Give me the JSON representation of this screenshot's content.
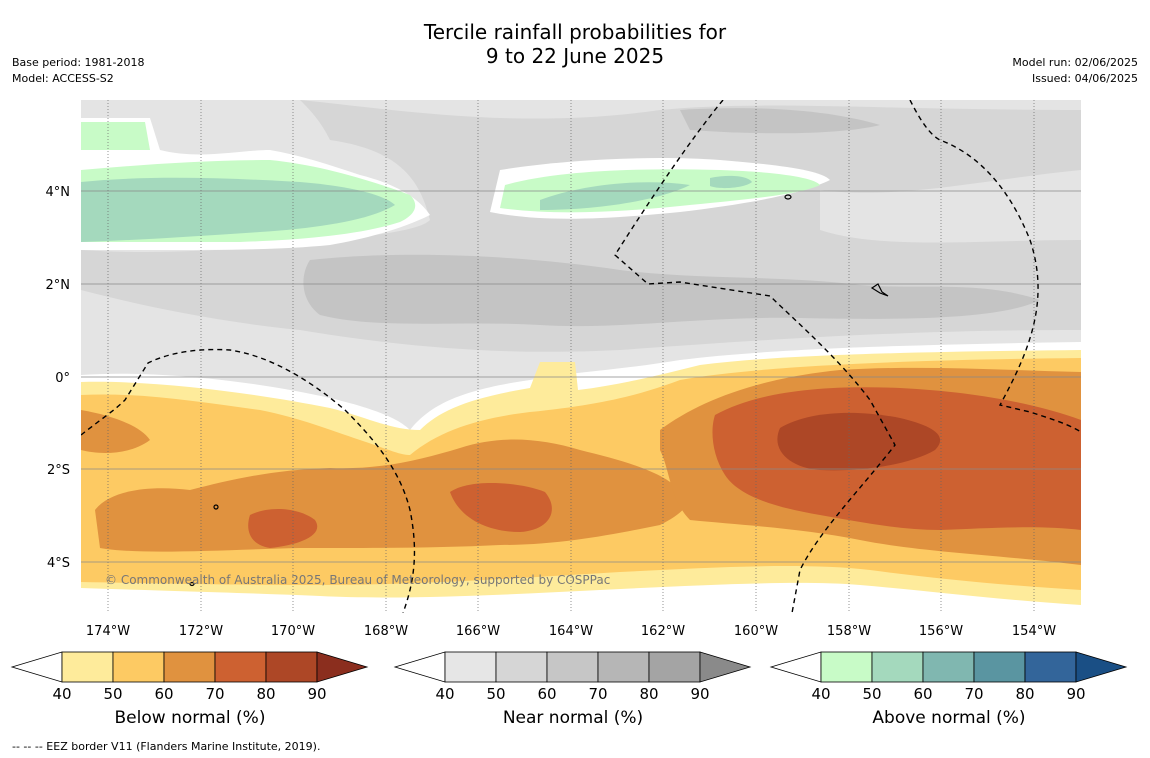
{
  "title_line1": "Tercile rainfall probabilities for",
  "title_line2": "9 to 22 June 2025",
  "meta_left": [
    "Base period: 1981-2018",
    "Model: ACCESS-S2"
  ],
  "meta_right": [
    "Model run: 02/06/2025",
    "Issued: 04/06/2025"
  ],
  "copyright": "© Commonwealth of Australia 2025, Bureau of Meteorology, supported by COSPPac",
  "map": {
    "lon_ticks": [
      "174°W",
      "172°W",
      "170°W",
      "168°W",
      "166°W",
      "164°W",
      "162°W",
      "160°W",
      "158°W",
      "156°W",
      "154°W"
    ],
    "lat_ticks": [
      "4°N",
      "2°N",
      "0°",
      "2°S",
      "4°S"
    ]
  },
  "colorbars": [
    {
      "label": "Below normal (%)",
      "ticks": [
        "40",
        "50",
        "60",
        "70",
        "80",
        "90"
      ],
      "colors": [
        "#ffffff",
        "#feeb9b",
        "#fdca63",
        "#e0923f",
        "#cd6131",
        "#ad4726",
        "#8b2e1e"
      ]
    },
    {
      "label": "Near normal (%)",
      "ticks": [
        "40",
        "50",
        "60",
        "70",
        "80",
        "90"
      ],
      "colors": [
        "#ffffff",
        "#e6e6e6",
        "#d6d6d6",
        "#c6c6c6",
        "#b6b6b6",
        "#a4a4a4",
        "#8a8a8a"
      ]
    },
    {
      "label": "Above normal (%)",
      "ticks": [
        "40",
        "50",
        "60",
        "70",
        "80",
        "90"
      ],
      "colors": [
        "#ffffff",
        "#c8fbc7",
        "#a4d9bd",
        "#80b7b0",
        "#5a95a1",
        "#33659a",
        "#1a4f85"
      ]
    }
  ],
  "footer": "--  --  -- EEZ border V11 (Flanders Marine Institute, 2019)."
}
